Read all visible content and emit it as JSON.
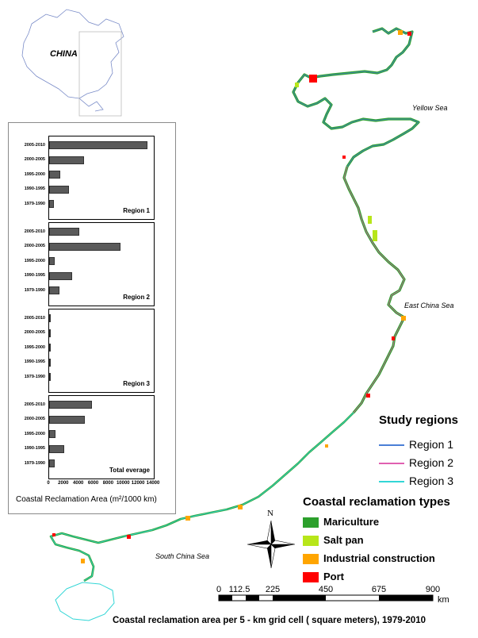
{
  "inset_map": {
    "label": "CHINA"
  },
  "seas": {
    "yellow_sea": "Yellow Sea",
    "east_china_sea": "East China Sea",
    "south_china_sea": "South China Sea"
  },
  "chart_data": {
    "type": "bar",
    "orientation": "horizontal",
    "categories": [
      "2005-2010",
      "2000-2005",
      "1995-2000",
      "1990-1995",
      "1979-1990"
    ],
    "xlabel": "Coastal Reclamation Area (m²/1000 km)",
    "xlim": [
      0,
      14000
    ],
    "xticks": [
      "0",
      "2000",
      "4000",
      "6000",
      "8000",
      "10000",
      "12000",
      "14000"
    ],
    "panels": [
      {
        "name": "Region 1",
        "values": [
          13200,
          4700,
          1500,
          2700,
          600
        ]
      },
      {
        "name": "Region 2",
        "values": [
          4000,
          9500,
          700,
          3100,
          1400
        ]
      },
      {
        "name": "Region 3",
        "values": [
          200,
          150,
          60,
          150,
          40
        ]
      },
      {
        "name": "Total everage",
        "values": [
          5700,
          4800,
          800,
          2000,
          700
        ]
      }
    ]
  },
  "study_regions": {
    "title": "Study regions",
    "items": [
      {
        "label": "Region 1",
        "color": "#4a7fd6"
      },
      {
        "label": "Region 2",
        "color": "#e060b0"
      },
      {
        "label": "Region 3",
        "color": "#33d6d6"
      }
    ]
  },
  "reclamation_types": {
    "title": "Coastal reclamation types",
    "items": [
      {
        "label": "Mariculture",
        "color": "#2ca02c"
      },
      {
        "label": "Salt pan",
        "color": "#b7e61a"
      },
      {
        "label": "Industrial construction",
        "color": "#ffa500"
      },
      {
        "label": "Port",
        "color": "#ff0000"
      }
    ]
  },
  "compass": {
    "north_label": "N"
  },
  "scale_bar": {
    "labels": [
      "0",
      "112.5",
      "225",
      "450",
      "675",
      "900"
    ],
    "unit": "km"
  },
  "caption": "Coastal reclamation area per 5 - km grid cell ( square meters), 1979-2010"
}
